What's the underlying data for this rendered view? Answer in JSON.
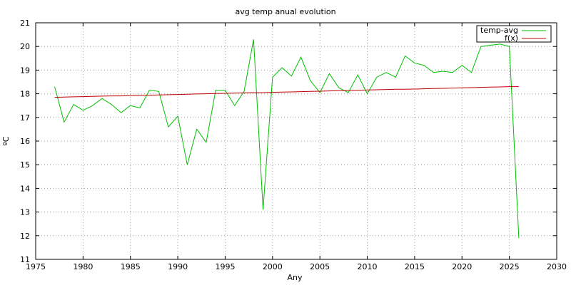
{
  "chart_data": {
    "type": "line",
    "title": "avg temp anual evolution",
    "xlabel": "Any",
    "ylabel": "ºC",
    "xlim": [
      1975,
      2030
    ],
    "ylim": [
      11,
      21
    ],
    "xticks": [
      1975,
      1980,
      1985,
      1990,
      1995,
      2000,
      2005,
      2010,
      2015,
      2020,
      2025,
      2030
    ],
    "yticks": [
      11,
      12,
      13,
      14,
      15,
      16,
      17,
      18,
      19,
      20,
      21
    ],
    "grid": true,
    "legend_position": "top-right",
    "x": [
      1977,
      1978,
      1979,
      1980,
      1981,
      1982,
      1983,
      1984,
      1985,
      1986,
      1987,
      1988,
      1989,
      1990,
      1991,
      1992,
      1993,
      1994,
      1995,
      1996,
      1997,
      1998,
      1999,
      2000,
      2001,
      2002,
      2003,
      2004,
      2005,
      2006,
      2007,
      2008,
      2009,
      2010,
      2011,
      2012,
      2013,
      2014,
      2015,
      2016,
      2017,
      2018,
      2019,
      2020,
      2021,
      2022,
      2023,
      2024,
      2025,
      2026
    ],
    "series": [
      {
        "name": "temp-avg",
        "color": "#00c000",
        "values": [
          18.3,
          16.8,
          17.55,
          17.3,
          17.5,
          17.8,
          17.55,
          17.2,
          17.5,
          17.4,
          18.15,
          18.1,
          16.6,
          17.05,
          15.0,
          16.5,
          15.95,
          18.15,
          18.15,
          17.5,
          18.1,
          20.3,
          13.1,
          18.7,
          19.1,
          18.75,
          19.55,
          18.55,
          18.05,
          18.85,
          18.25,
          18.05,
          18.8,
          18.0,
          18.7,
          18.9,
          18.7,
          19.6,
          19.3,
          19.2,
          18.9,
          18.95,
          18.9,
          19.2,
          18.9,
          20.0,
          20.05,
          20.1,
          20.0,
          11.9
        ]
      },
      {
        "name": "f(x)",
        "color": "#c00000",
        "values": [
          17.85,
          17.86,
          17.87,
          17.88,
          17.89,
          17.9,
          17.91,
          17.91,
          17.92,
          17.93,
          17.94,
          17.95,
          17.96,
          17.97,
          17.98,
          17.99,
          18.0,
          18.01,
          18.02,
          18.03,
          18.04,
          18.05,
          18.05,
          18.06,
          18.07,
          18.08,
          18.09,
          18.1,
          18.11,
          18.12,
          18.13,
          18.14,
          18.15,
          18.16,
          18.17,
          18.18,
          18.19,
          18.19,
          18.2,
          18.21,
          18.22,
          18.23,
          18.24,
          18.25,
          18.26,
          18.27,
          18.28,
          18.29,
          18.3,
          18.3
        ]
      }
    ]
  }
}
